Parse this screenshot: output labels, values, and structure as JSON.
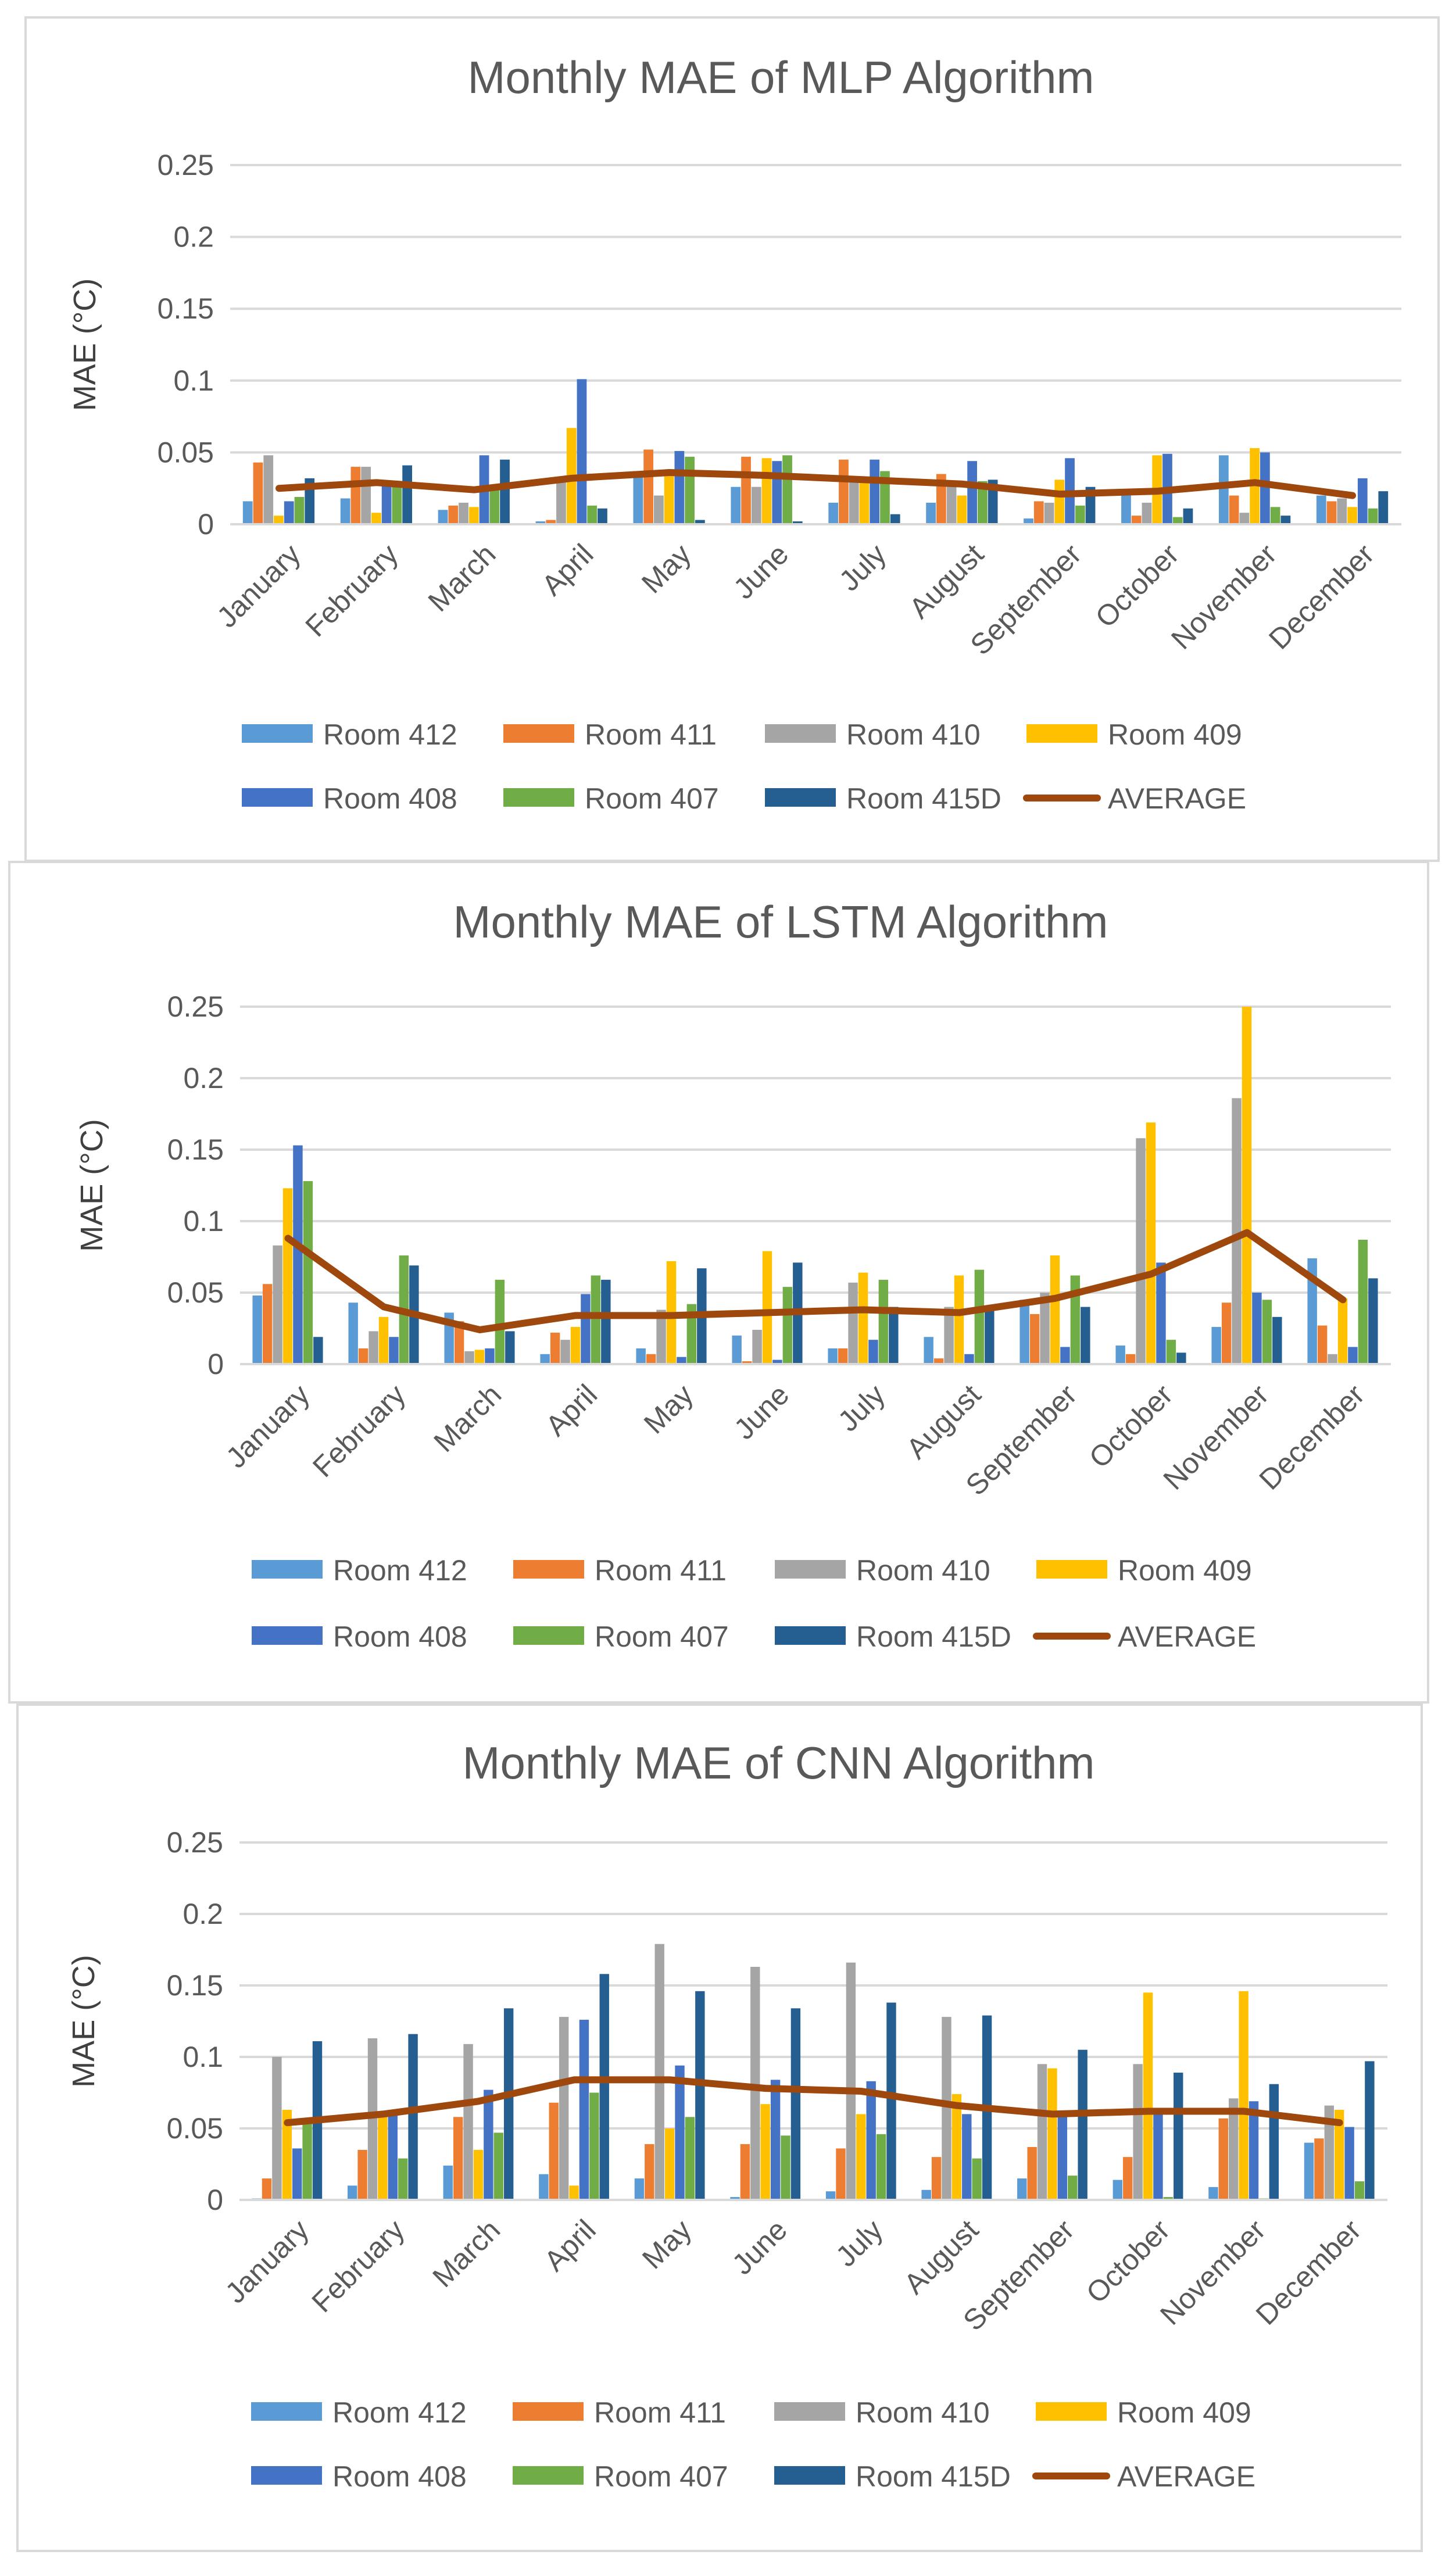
{
  "chart_data": [
    {
      "type": "bar",
      "title": "Monthly MAE of MLP Algorithm",
      "ylabel": "MAE (°C)",
      "xlabel": "",
      "ylim": [
        0,
        0.25
      ],
      "yticks": [
        "0",
        "0.05",
        "0.1",
        "0.15",
        "0.2",
        "0.25"
      ],
      "categories": [
        "January",
        "February",
        "March",
        "April",
        "May",
        "June",
        "July",
        "August",
        "September",
        "October",
        "November",
        "December"
      ],
      "series": [
        {
          "name": "Room 412",
          "color": "#5b9bd5",
          "values": [
            0.016,
            0.018,
            0.01,
            0.002,
            0.037,
            0.026,
            0.015,
            0.015,
            0.004,
            0.02,
            0.048,
            0.02
          ]
        },
        {
          "name": "Room 411",
          "color": "#ed7d31",
          "values": [
            0.043,
            0.04,
            0.013,
            0.003,
            0.052,
            0.047,
            0.045,
            0.035,
            0.016,
            0.006,
            0.02,
            0.016
          ]
        },
        {
          "name": "Room 410",
          "color": "#a5a5a5",
          "values": [
            0.048,
            0.04,
            0.015,
            0.03,
            0.02,
            0.026,
            0.03,
            0.028,
            0.015,
            0.015,
            0.008,
            0.018
          ]
        },
        {
          "name": "Room 409",
          "color": "#ffc000",
          "values": [
            0.006,
            0.008,
            0.012,
            0.067,
            0.038,
            0.046,
            0.03,
            0.02,
            0.031,
            0.048,
            0.053,
            0.012
          ]
        },
        {
          "name": "Room 408",
          "color": "#4472c4",
          "values": [
            0.016,
            0.03,
            0.048,
            0.101,
            0.051,
            0.044,
            0.045,
            0.044,
            0.046,
            0.049,
            0.05,
            0.032
          ]
        },
        {
          "name": "Room 407",
          "color": "#70ad47",
          "values": [
            0.019,
            0.028,
            0.026,
            0.013,
            0.047,
            0.048,
            0.037,
            0.03,
            0.013,
            0.005,
            0.012,
            0.011
          ]
        },
        {
          "name": "Room 415D",
          "color": "#255e91",
          "values": [
            0.032,
            0.041,
            0.045,
            0.011,
            0.003,
            0.002,
            0.007,
            0.031,
            0.026,
            0.011,
            0.006,
            0.023
          ]
        }
      ],
      "average": {
        "name": "AVERAGE",
        "color": "#9e480e",
        "values": [
          0.025,
          0.029,
          0.024,
          0.032,
          0.036,
          0.034,
          0.031,
          0.028,
          0.021,
          0.023,
          0.029,
          0.02
        ]
      }
    },
    {
      "type": "bar",
      "title": "Monthly MAE of LSTM Algorithm",
      "ylabel": "MAE (°C)",
      "xlabel": "",
      "ylim": [
        0,
        0.25
      ],
      "yticks": [
        "0",
        "0.05",
        "0.1",
        "0.15",
        "0.2",
        "0.25"
      ],
      "categories": [
        "January",
        "February",
        "March",
        "April",
        "May",
        "June",
        "July",
        "August",
        "September",
        "October",
        "November",
        "December"
      ],
      "series": [
        {
          "name": "Room 412",
          "color": "#5b9bd5",
          "values": [
            0.048,
            0.043,
            0.036,
            0.007,
            0.011,
            0.02,
            0.011,
            0.019,
            0.045,
            0.013,
            0.026,
            0.074
          ]
        },
        {
          "name": "Room 411",
          "color": "#ed7d31",
          "values": [
            0.056,
            0.011,
            0.03,
            0.022,
            0.007,
            0.002,
            0.011,
            0.004,
            0.035,
            0.007,
            0.043,
            0.027
          ]
        },
        {
          "name": "Room 410",
          "color": "#a5a5a5",
          "values": [
            0.083,
            0.023,
            0.009,
            0.017,
            0.038,
            0.024,
            0.057,
            0.04,
            0.05,
            0.158,
            0.186,
            0.007
          ]
        },
        {
          "name": "Room 409",
          "color": "#ffc000",
          "values": [
            0.123,
            0.033,
            0.01,
            0.026,
            0.072,
            0.079,
            0.064,
            0.062,
            0.076,
            0.169,
            0.25,
            0.046
          ]
        },
        {
          "name": "Room 408",
          "color": "#4472c4",
          "values": [
            0.153,
            0.019,
            0.011,
            0.049,
            0.005,
            0.003,
            0.017,
            0.007,
            0.012,
            0.071,
            0.05,
            0.012
          ]
        },
        {
          "name": "Room 407",
          "color": "#70ad47",
          "values": [
            0.128,
            0.076,
            0.059,
            0.062,
            0.042,
            0.054,
            0.059,
            0.066,
            0.062,
            0.017,
            0.045,
            0.087
          ]
        },
        {
          "name": "Room 415D",
          "color": "#255e91",
          "values": [
            0.019,
            0.069,
            0.023,
            0.059,
            0.067,
            0.071,
            0.04,
            0.04,
            0.04,
            0.008,
            0.033,
            0.06
          ]
        }
      ],
      "average": {
        "name": "AVERAGE",
        "color": "#9e480e",
        "values": [
          0.088,
          0.04,
          0.024,
          0.034,
          0.034,
          0.036,
          0.038,
          0.036,
          0.046,
          0.063,
          0.092,
          0.045
        ]
      }
    },
    {
      "type": "bar",
      "title": "Monthly MAE of CNN Algorithm",
      "ylabel": "MAE (°C)",
      "xlabel": "",
      "ylim": [
        0,
        0.25
      ],
      "yticks": [
        "0",
        "0.05",
        "0.1",
        "0.15",
        "0.2",
        "0.25"
      ],
      "categories": [
        "January",
        "February",
        "March",
        "April",
        "May",
        "June",
        "July",
        "August",
        "September",
        "October",
        "November",
        "December"
      ],
      "series": [
        {
          "name": "Room 412",
          "color": "#5b9bd5",
          "values": [
            0.001,
            0.01,
            0.024,
            0.018,
            0.015,
            0.002,
            0.006,
            0.007,
            0.015,
            0.014,
            0.009,
            0.04
          ]
        },
        {
          "name": "Room 411",
          "color": "#ed7d31",
          "values": [
            0.015,
            0.035,
            0.058,
            0.068,
            0.039,
            0.039,
            0.036,
            0.03,
            0.037,
            0.03,
            0.057,
            0.043
          ]
        },
        {
          "name": "Room 410",
          "color": "#a5a5a5",
          "values": [
            0.1,
            0.113,
            0.109,
            0.128,
            0.179,
            0.163,
            0.166,
            0.128,
            0.095,
            0.095,
            0.071,
            0.066
          ]
        },
        {
          "name": "Room 409",
          "color": "#ffc000",
          "values": [
            0.063,
            0.058,
            0.035,
            0.01,
            0.05,
            0.067,
            0.06,
            0.074,
            0.092,
            0.145,
            0.146,
            0.063
          ]
        },
        {
          "name": "Room 408",
          "color": "#4472c4",
          "values": [
            0.036,
            0.061,
            0.077,
            0.126,
            0.094,
            0.084,
            0.083,
            0.06,
            0.06,
            0.06,
            0.069,
            0.051
          ]
        },
        {
          "name": "Room 407",
          "color": "#70ad47",
          "values": [
            0.055,
            0.029,
            0.047,
            0.075,
            0.058,
            0.045,
            0.046,
            0.029,
            0.017,
            0.002,
            0.001,
            0.013
          ]
        },
        {
          "name": "Room 415D",
          "color": "#255e91",
          "values": [
            0.111,
            0.116,
            0.134,
            0.158,
            0.146,
            0.134,
            0.138,
            0.129,
            0.105,
            0.089,
            0.081,
            0.097
          ]
        }
      ],
      "average": {
        "name": "AVERAGE",
        "color": "#9e480e",
        "values": [
          0.054,
          0.06,
          0.069,
          0.084,
          0.084,
          0.078,
          0.076,
          0.066,
          0.06,
          0.062,
          0.062,
          0.054
        ]
      }
    }
  ]
}
